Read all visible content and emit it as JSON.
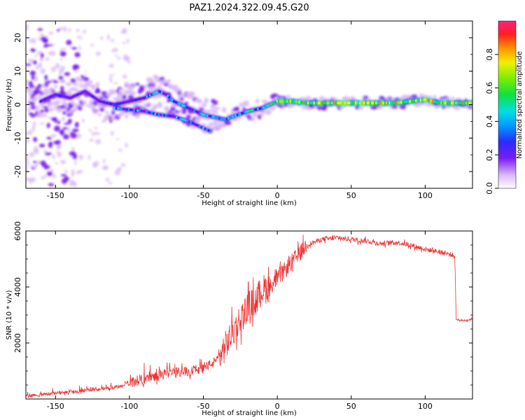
{
  "title": "PAZ1.2024.322.09.45.G20",
  "chart_data": [
    {
      "type": "heatmap",
      "xlabel": "Height of straight line (km)",
      "ylabel": "Frequency (Hz)",
      "xlim": [
        -170,
        132
      ],
      "ylim": [
        -25,
        25
      ],
      "xticks": [
        -150,
        -100,
        -50,
        0,
        50,
        100
      ],
      "yticks": [
        -20,
        -10,
        0,
        10,
        20
      ],
      "colorbar": {
        "label": "Normalized spectral amplitude",
        "range": [
          0,
          1
        ],
        "ticks": [
          "0.0",
          "0.2",
          "0.4",
          "0.6",
          "0.8"
        ]
      },
      "ridge": {
        "x": [
          -165,
          -150,
          -140,
          -130,
          -120,
          -110,
          -100,
          -90,
          -80,
          -75,
          -70,
          -60,
          -50,
          -40,
          -35,
          -30,
          -20,
          -10,
          0,
          10,
          20,
          40,
          60,
          80,
          90,
          100,
          110,
          120,
          132
        ],
        "y": [
          0,
          3,
          2,
          4,
          1,
          0,
          1,
          2,
          4,
          3,
          1,
          -1,
          -3,
          -4,
          -4.5,
          -3.5,
          -2,
          -1,
          1,
          1,
          0.5,
          0.5,
          0.5,
          0.5,
          1,
          1.5,
          0.5,
          0.5,
          0.5
        ]
      },
      "ridge2": {
        "x": [
          -110,
          -100,
          -90,
          -80,
          -70,
          -60,
          -50,
          -45
        ],
        "y": [
          -1,
          -1.5,
          -2,
          -3,
          -3.5,
          -5,
          -7,
          -8
        ]
      }
    },
    {
      "type": "line",
      "xlabel": "Height of straight line (km)",
      "ylabel": "SNR (10 * v/v)",
      "xlim": [
        -170,
        132
      ],
      "ylim": [
        0,
        6000
      ],
      "xticks": [
        -150,
        -100,
        -50,
        0,
        50,
        100
      ],
      "yticks": [
        2000,
        4000,
        6000
      ],
      "series": [
        {
          "color": "#ee3333",
          "x": [
            -170,
            -150,
            -130,
            -110,
            -100,
            -90,
            -80,
            -70,
            -60,
            -50,
            -40,
            -30,
            -20,
            -15,
            -10,
            -5,
            0,
            10,
            20,
            30,
            40,
            50,
            60,
            70,
            80,
            90,
            100,
            110,
            118,
            120,
            121,
            125,
            132
          ],
          "y": [
            100,
            200,
            300,
            400,
            550,
            700,
            850,
            950,
            1000,
            1100,
            1400,
            2400,
            3300,
            3500,
            3900,
            4000,
            4300,
            4900,
            5500,
            5700,
            5750,
            5700,
            5650,
            5550,
            5600,
            5500,
            5350,
            5250,
            5150,
            5100,
            2850,
            2800,
            2850
          ]
        }
      ]
    }
  ]
}
